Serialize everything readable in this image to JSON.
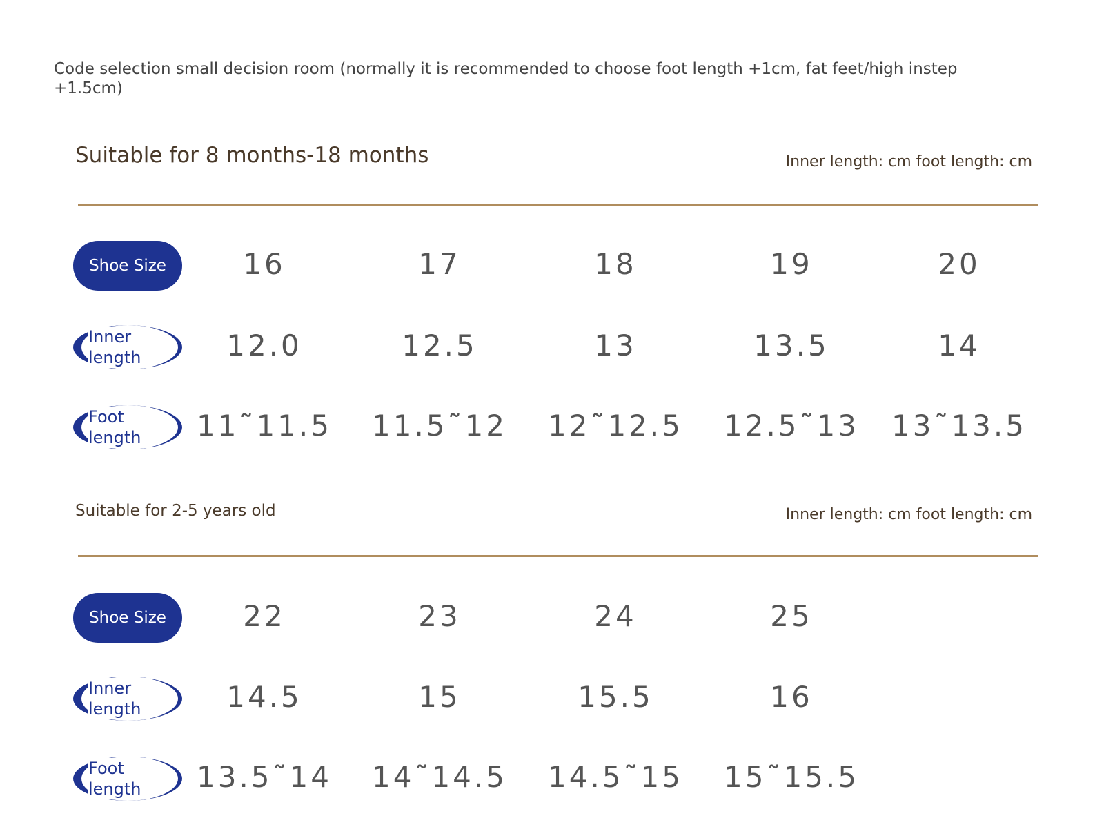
{
  "note": "Code selection small decision room (normally it is recommended to choose foot length +1cm, fat feet/high instep +1.5cm)",
  "sections": [
    {
      "title": "Suitable for 8 months-18 months",
      "unit_note": "Inner length: cm foot length: cm",
      "rows": [
        {
          "label": "Shoe Size",
          "values": [
            "16",
            "17",
            "18",
            "19",
            "20"
          ]
        },
        {
          "label": "Inner length",
          "values": [
            "12.0",
            "12.5",
            "13",
            "13.5",
            "14"
          ]
        },
        {
          "label": "Foot length",
          "values": [
            "11˜11.5",
            "11.5˜12",
            "12˜12.5",
            "12.5˜13",
            "13˜13.5"
          ]
        }
      ]
    },
    {
      "title": "Suitable for 2-5 years old",
      "unit_note": "Inner length: cm foot length: cm",
      "rows": [
        {
          "label": "Shoe Size",
          "values": [
            "22",
            "23",
            "24",
            "25"
          ]
        },
        {
          "label": "Inner length",
          "values": [
            "14.5",
            "15",
            "15.5",
            "16"
          ]
        },
        {
          "label": "Foot length",
          "values": [
            "13.5˜14",
            "14˜14.5",
            "14.5˜15",
            "15˜15.5"
          ]
        }
      ]
    }
  ]
}
